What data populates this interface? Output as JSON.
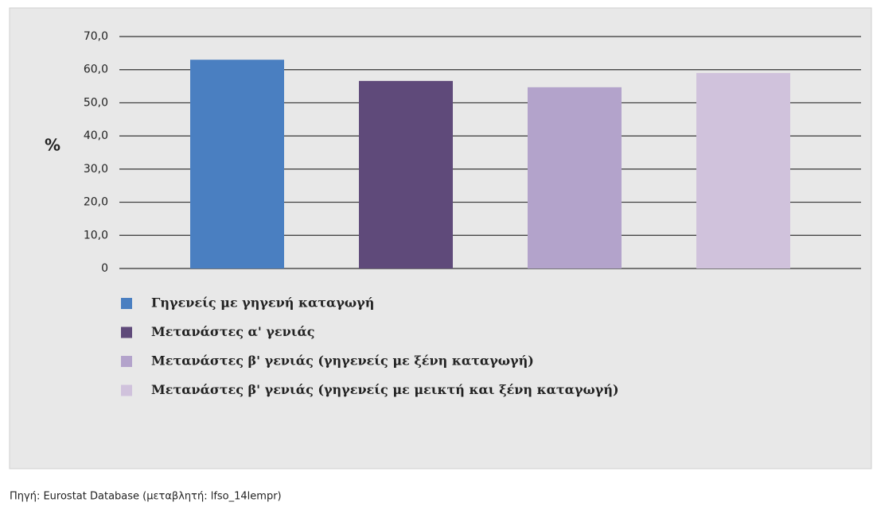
{
  "chart_data": {
    "type": "bar",
    "y_label": "%",
    "series": [
      {
        "name": "Γηγενείς με γηγενή καταγωγή",
        "color": "#4a7fc1",
        "values": [
          63.0
        ]
      },
      {
        "name": "Μετανάστες α' γενιάς",
        "color": "#5f4a7a",
        "values": [
          56.6
        ]
      },
      {
        "name": "Μετανάστες β' γενιάς (γηγενείς με ξένη καταγωγή)",
        "color": "#b3a3cb",
        "values": [
          54.7
        ]
      },
      {
        "name": "Μετανάστες β' γενιάς (γηγενείς με μεικτή και ξένη καταγωγή)",
        "color": "#d0c2dc",
        "values": [
          59.0
        ]
      }
    ],
    "ylim": [
      0,
      70
    ],
    "yticks": [
      0,
      {
        "value": 10,
        "label": "10,0"
      },
      {
        "value": 20,
        "label": "20,0"
      },
      {
        "value": 30,
        "label": "30,0"
      },
      {
        "value": 40,
        "label": "40,0"
      },
      {
        "value": 50,
        "label": "50,0"
      },
      {
        "value": 60,
        "label": "60,0"
      },
      {
        "value": 70,
        "label": "70,0"
      }
    ],
    "grid": true,
    "legend": "bottom",
    "source": "Πηγή: Eurostat Database (μεταβλητή: lfso_14lempr)"
  }
}
